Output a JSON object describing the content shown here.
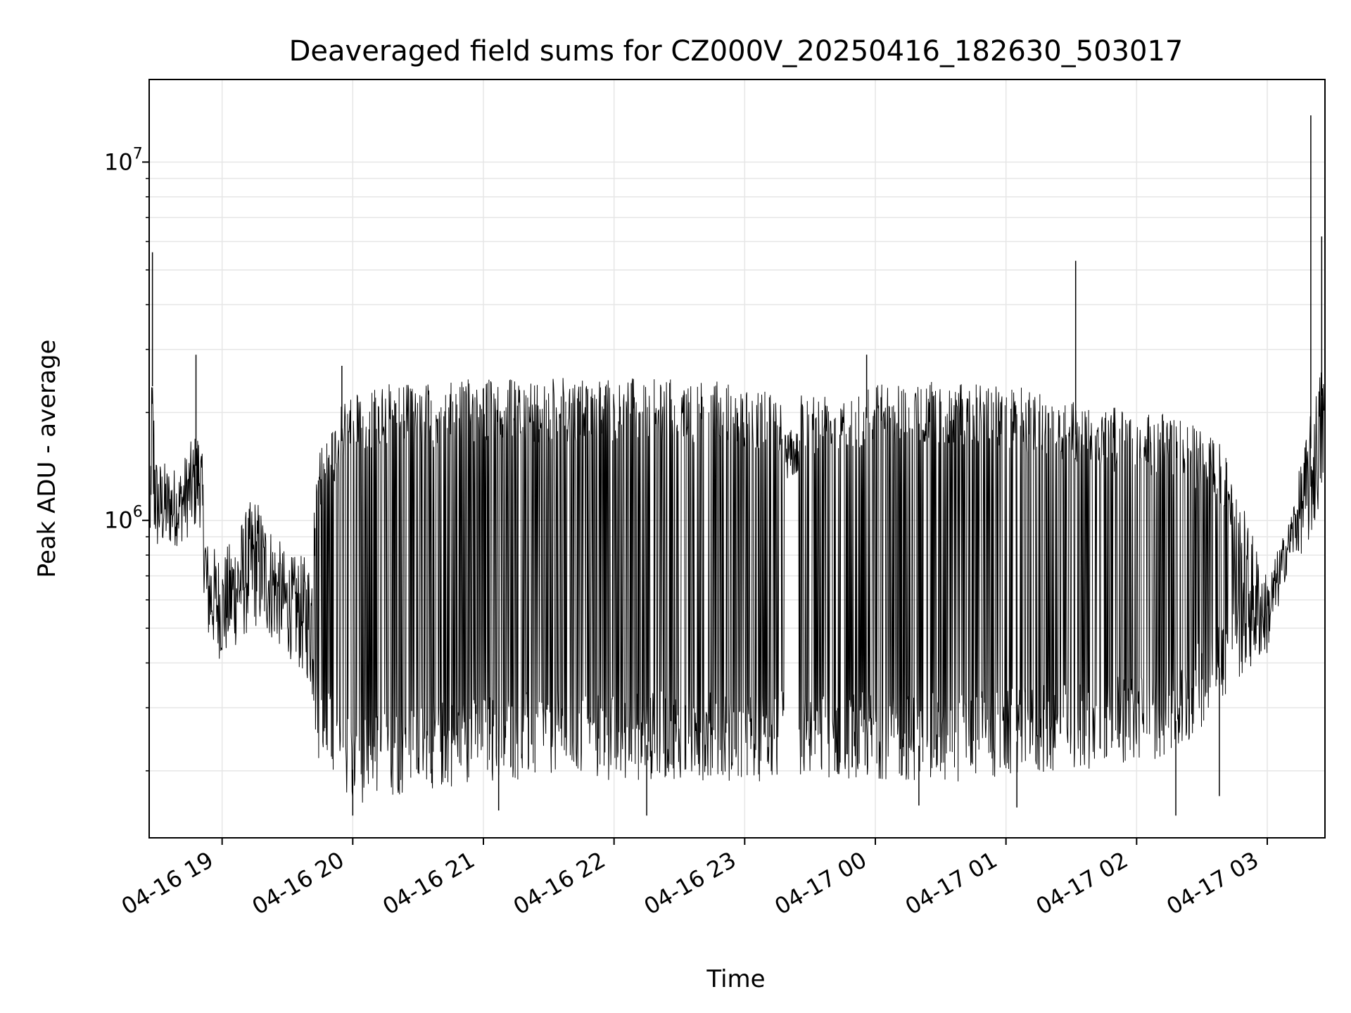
{
  "chart_data": {
    "type": "line",
    "title": "Deaveraged field sums for CZ000V_20250416_182630_503017",
    "xlabel": "Time",
    "ylabel": "Peak ADU - average",
    "yscale": "log",
    "grid": true,
    "line_color": "#000000",
    "grid_color": "#e6e6e6",
    "xlim": [
      "2025-04-16 18:26:30",
      "2025-04-17 03:26:30"
    ],
    "ylim": [
      130000,
      17000000
    ],
    "x_ticks": [
      {
        "value": "2025-04-16 19:00",
        "label": "04-16 19"
      },
      {
        "value": "2025-04-16 20:00",
        "label": "04-16 20"
      },
      {
        "value": "2025-04-16 21:00",
        "label": "04-16 21"
      },
      {
        "value": "2025-04-16 22:00",
        "label": "04-16 22"
      },
      {
        "value": "2025-04-16 23:00",
        "label": "04-16 23"
      },
      {
        "value": "2025-04-17 00:00",
        "label": "04-17 00"
      },
      {
        "value": "2025-04-17 01:00",
        "label": "04-17 01"
      },
      {
        "value": "2025-04-17 02:00",
        "label": "04-17 02"
      },
      {
        "value": "2025-04-17 03:00",
        "label": "04-17 03"
      }
    ],
    "y_ticks": [
      {
        "value": 1000000,
        "base": "10",
        "exp": "6"
      },
      {
        "value": 10000000,
        "base": "10",
        "exp": "7"
      }
    ],
    "series": [
      {
        "envelope": [
          {
            "t": "2025-04-16 18:27",
            "upper": 4200000,
            "lower": 800000
          },
          {
            "t": "2025-04-16 18:30",
            "upper": 1500000,
            "lower": 800000
          },
          {
            "t": "2025-04-16 18:40",
            "upper": 1400000,
            "lower": 850000
          },
          {
            "t": "2025-04-16 18:50",
            "upper": 1900000,
            "lower": 950000
          },
          {
            "t": "2025-04-16 18:53",
            "upper": 900000,
            "lower": 450000
          },
          {
            "t": "2025-04-16 19:00",
            "upper": 800000,
            "lower": 400000
          },
          {
            "t": "2025-04-16 19:15",
            "upper": 1200000,
            "lower": 500000
          },
          {
            "t": "2025-04-16 19:30",
            "upper": 800000,
            "lower": 420000
          },
          {
            "t": "2025-04-16 19:40",
            "upper": 800000,
            "lower": 350000
          },
          {
            "t": "2025-04-16 19:45",
            "upper": 1600000,
            "lower": 200000
          },
          {
            "t": "2025-04-16 20:00",
            "upper": 2400000,
            "lower": 160000
          },
          {
            "t": "2025-04-16 20:30",
            "upper": 2400000,
            "lower": 175000
          },
          {
            "t": "2025-04-16 21:00",
            "upper": 2500000,
            "lower": 185000
          },
          {
            "t": "2025-04-16 21:30",
            "upper": 2500000,
            "lower": 190000
          },
          {
            "t": "2025-04-16 22:00",
            "upper": 2500000,
            "lower": 185000
          },
          {
            "t": "2025-04-16 22:30",
            "upper": 2500000,
            "lower": 190000
          },
          {
            "t": "2025-04-16 23:00",
            "upper": 2400000,
            "lower": 185000
          },
          {
            "t": "2025-04-16 23:30",
            "upper": 2300000,
            "lower": 190000
          },
          {
            "t": "2025-04-17 00:00",
            "upper": 2450000,
            "lower": 190000
          },
          {
            "t": "2025-04-17 00:30",
            "upper": 2450000,
            "lower": 185000
          },
          {
            "t": "2025-04-17 01:00",
            "upper": 2400000,
            "lower": 190000
          },
          {
            "t": "2025-04-17 01:30",
            "upper": 2200000,
            "lower": 200000
          },
          {
            "t": "2025-04-17 02:00",
            "upper": 2000000,
            "lower": 210000
          },
          {
            "t": "2025-04-17 02:20",
            "upper": 2000000,
            "lower": 220000
          },
          {
            "t": "2025-04-17 02:40",
            "upper": 1600000,
            "lower": 320000
          },
          {
            "t": "2025-04-17 03:00",
            "upper": 700000,
            "lower": 420000
          },
          {
            "t": "2025-04-17 03:10",
            "upper": 1000000,
            "lower": 750000
          },
          {
            "t": "2025-04-17 03:20",
            "upper": 2000000,
            "lower": 850000
          },
          {
            "t": "2025-04-17 03:26",
            "upper": 3000000,
            "lower": 1200000
          }
        ],
        "gaps": [
          {
            "start": "2025-04-16 23:18",
            "end": "2025-04-16 23:25",
            "upper": 1800000,
            "lower": 1300000
          }
        ],
        "spikes": [
          {
            "t": "2025-04-16 18:28",
            "value": 5600000
          },
          {
            "t": "2025-04-16 18:48",
            "value": 2900000
          },
          {
            "t": "2025-04-16 19:55",
            "value": 2700000
          },
          {
            "t": "2025-04-16 23:56",
            "value": 2900000
          },
          {
            "t": "2025-04-17 01:32",
            "value": 5300000
          },
          {
            "t": "2025-04-17 03:20",
            "value": 13500000
          },
          {
            "t": "2025-04-17 03:25",
            "value": 6200000
          }
        ],
        "dips": [
          {
            "t": "2025-04-16 20:00",
            "value": 150000
          },
          {
            "t": "2025-04-16 21:07",
            "value": 155000
          },
          {
            "t": "2025-04-16 22:15",
            "value": 150000
          },
          {
            "t": "2025-04-17 00:20",
            "value": 160000
          },
          {
            "t": "2025-04-17 01:05",
            "value": 158000
          },
          {
            "t": "2025-04-17 02:18",
            "value": 150000
          },
          {
            "t": "2025-04-17 02:38",
            "value": 170000
          }
        ]
      }
    ]
  }
}
